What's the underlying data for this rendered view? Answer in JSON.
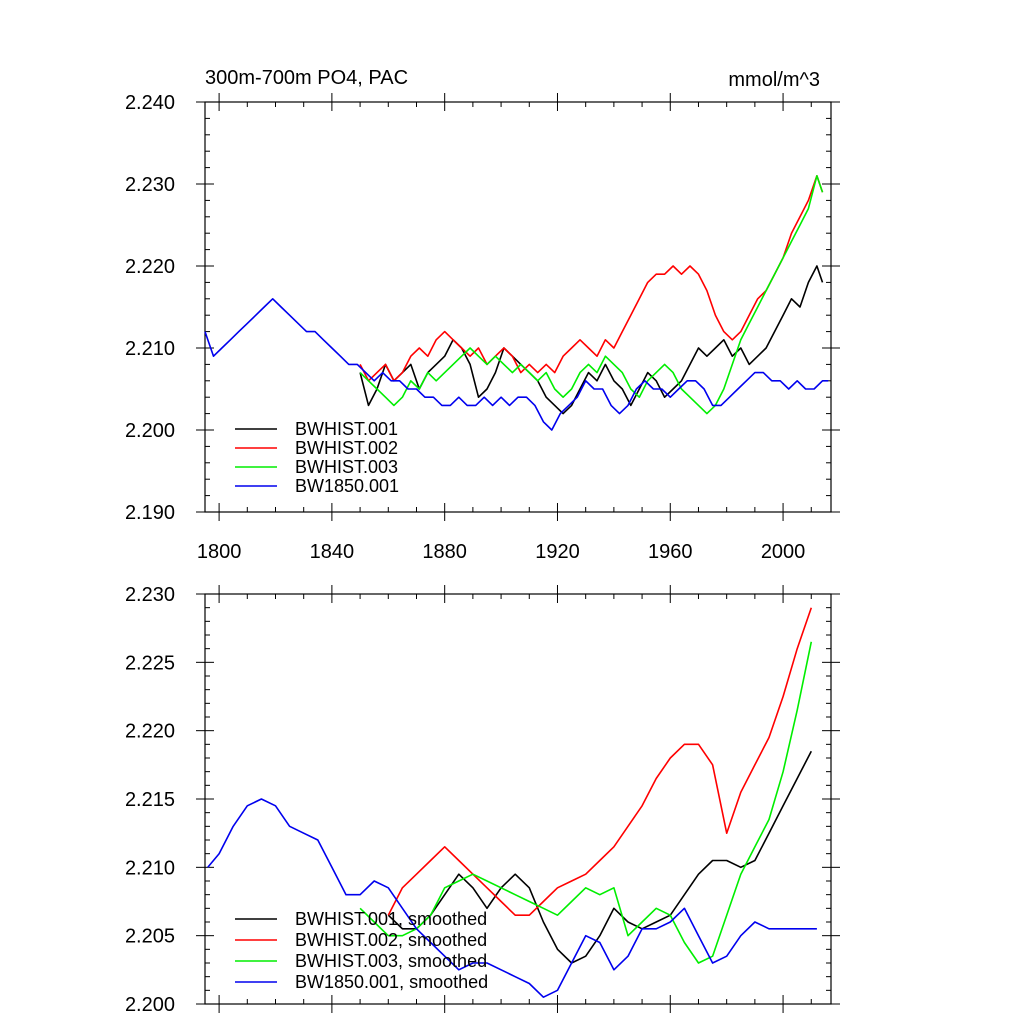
{
  "chart_data": [
    {
      "type": "line",
      "title": "300m-700m PO4, PAC",
      "units_label": "mmol/m^3",
      "xlabel": "",
      "ylabel": "",
      "xlim": [
        1795,
        2017
      ],
      "ylim": [
        2.19,
        2.24
      ],
      "x_ticks": [
        1800,
        1840,
        1880,
        1920,
        1960,
        2000
      ],
      "x_tick_labels": [
        "1800",
        "1840",
        "1880",
        "1920",
        "1960",
        "2000"
      ],
      "y_ticks": [
        2.19,
        2.2,
        2.21,
        2.22,
        2.23,
        2.24
      ],
      "y_tick_labels": [
        "2.190",
        "2.200",
        "2.210",
        "2.220",
        "2.230",
        "2.240"
      ],
      "legend_position": "lower-left",
      "series": [
        {
          "name": "BWHIST.001",
          "color": "#000000",
          "x": [
            1850,
            1853,
            1856,
            1859,
            1862,
            1865,
            1868,
            1871,
            1874,
            1877,
            1880,
            1883,
            1886,
            1889,
            1892,
            1895,
            1898,
            1901,
            1904,
            1907,
            1910,
            1913,
            1916,
            1919,
            1922,
            1925,
            1928,
            1931,
            1934,
            1937,
            1940,
            1943,
            1946,
            1949,
            1952,
            1955,
            1958,
            1961,
            1964,
            1967,
            1970,
            1973,
            1976,
            1979,
            1982,
            1985,
            1988,
            1991,
            1994,
            1997,
            2000,
            2003,
            2006,
            2009,
            2012,
            2014
          ],
          "y": [
            2.207,
            2.203,
            2.205,
            2.208,
            2.206,
            2.207,
            2.208,
            2.205,
            2.207,
            2.208,
            2.209,
            2.211,
            2.21,
            2.208,
            2.204,
            2.205,
            2.207,
            2.21,
            2.209,
            2.208,
            2.207,
            2.206,
            2.204,
            2.203,
            2.202,
            2.203,
            2.205,
            2.207,
            2.206,
            2.208,
            2.206,
            2.205,
            2.203,
            2.205,
            2.207,
            2.206,
            2.204,
            2.205,
            2.206,
            2.208,
            2.21,
            2.209,
            2.21,
            2.211,
            2.209,
            2.21,
            2.208,
            2.209,
            2.21,
            2.212,
            2.214,
            2.216,
            2.215,
            2.218,
            2.22,
            2.218
          ]
        },
        {
          "name": "BWHIST.002",
          "color": "#ff0000",
          "x": [
            1850,
            1853,
            1856,
            1859,
            1862,
            1865,
            1868,
            1871,
            1874,
            1877,
            1880,
            1883,
            1886,
            1889,
            1892,
            1895,
            1898,
            1901,
            1904,
            1907,
            1910,
            1913,
            1916,
            1919,
            1922,
            1925,
            1928,
            1931,
            1934,
            1937,
            1940,
            1943,
            1946,
            1949,
            1952,
            1955,
            1958,
            1961,
            1964,
            1967,
            1970,
            1973,
            1976,
            1979,
            1982,
            1985,
            1988,
            1991,
            1994,
            1997,
            2000,
            2003,
            2006,
            2009,
            2012,
            2014
          ],
          "y": [
            2.208,
            2.206,
            2.207,
            2.208,
            2.206,
            2.207,
            2.209,
            2.21,
            2.209,
            2.211,
            2.212,
            2.211,
            2.21,
            2.209,
            2.21,
            2.208,
            2.209,
            2.21,
            2.209,
            2.207,
            2.208,
            2.207,
            2.208,
            2.207,
            2.209,
            2.21,
            2.211,
            2.21,
            2.209,
            2.211,
            2.21,
            2.212,
            2.214,
            2.216,
            2.218,
            2.219,
            2.219,
            2.22,
            2.219,
            2.22,
            2.219,
            2.217,
            2.214,
            2.212,
            2.211,
            2.212,
            2.214,
            2.216,
            2.217,
            2.219,
            2.221,
            2.224,
            2.226,
            2.228,
            2.231,
            2.229
          ]
        },
        {
          "name": "BWHIST.003",
          "color": "#00ee00",
          "x": [
            1850,
            1853,
            1856,
            1859,
            1862,
            1865,
            1868,
            1871,
            1874,
            1877,
            1880,
            1883,
            1886,
            1889,
            1892,
            1895,
            1898,
            1901,
            1904,
            1907,
            1910,
            1913,
            1916,
            1919,
            1922,
            1925,
            1928,
            1931,
            1934,
            1937,
            1940,
            1943,
            1946,
            1949,
            1952,
            1955,
            1958,
            1961,
            1964,
            1967,
            1970,
            1973,
            1976,
            1979,
            1982,
            1985,
            1988,
            1991,
            1994,
            1997,
            2000,
            2003,
            2006,
            2009,
            2012,
            2014
          ],
          "y": [
            2.207,
            2.206,
            2.205,
            2.204,
            2.203,
            2.204,
            2.206,
            2.205,
            2.207,
            2.206,
            2.207,
            2.208,
            2.209,
            2.21,
            2.209,
            2.208,
            2.209,
            2.208,
            2.207,
            2.208,
            2.207,
            2.206,
            2.207,
            2.205,
            2.204,
            2.205,
            2.207,
            2.208,
            2.207,
            2.209,
            2.208,
            2.207,
            2.205,
            2.204,
            2.206,
            2.207,
            2.208,
            2.207,
            2.205,
            2.204,
            2.203,
            2.202,
            2.203,
            2.205,
            2.208,
            2.211,
            2.213,
            2.215,
            2.217,
            2.219,
            2.221,
            2.223,
            2.225,
            2.227,
            2.231,
            2.229
          ]
        },
        {
          "name": "BW1850.001",
          "color": "#0000ee",
          "x": [
            1795,
            1798,
            1801,
            1804,
            1807,
            1810,
            1813,
            1816,
            1819,
            1822,
            1825,
            1828,
            1831,
            1834,
            1837,
            1840,
            1843,
            1846,
            1849,
            1852,
            1855,
            1858,
            1861,
            1864,
            1867,
            1870,
            1873,
            1876,
            1879,
            1882,
            1885,
            1888,
            1891,
            1894,
            1897,
            1900,
            1903,
            1906,
            1909,
            1912,
            1915,
            1918,
            1921,
            1924,
            1927,
            1930,
            1933,
            1936,
            1939,
            1942,
            1945,
            1948,
            1951,
            1954,
            1957,
            1960,
            1963,
            1966,
            1969,
            1972,
            1975,
            1978,
            1981,
            1984,
            1987,
            1990,
            1993,
            1996,
            1999,
            2002,
            2005,
            2008,
            2011,
            2014,
            2016
          ],
          "y": [
            2.212,
            2.209,
            2.21,
            2.211,
            2.212,
            2.213,
            2.214,
            2.215,
            2.216,
            2.215,
            2.214,
            2.213,
            2.212,
            2.212,
            2.211,
            2.21,
            2.209,
            2.208,
            2.208,
            2.207,
            2.206,
            2.207,
            2.206,
            2.206,
            2.205,
            2.205,
            2.204,
            2.204,
            2.203,
            2.203,
            2.204,
            2.203,
            2.203,
            2.204,
            2.203,
            2.204,
            2.203,
            2.204,
            2.204,
            2.203,
            2.201,
            2.2,
            2.202,
            2.203,
            2.204,
            2.206,
            2.205,
            2.205,
            2.203,
            2.202,
            2.203,
            2.205,
            2.206,
            2.205,
            2.205,
            2.204,
            2.205,
            2.206,
            2.206,
            2.205,
            2.203,
            2.203,
            2.204,
            2.205,
            2.206,
            2.207,
            2.207,
            2.206,
            2.206,
            2.205,
            2.206,
            2.205,
            2.205,
            2.206,
            2.206
          ]
        }
      ]
    },
    {
      "type": "line",
      "title": "",
      "xlabel": "",
      "ylabel": "",
      "xlim": [
        1795,
        2017
      ],
      "ylim": [
        2.2,
        2.23
      ],
      "x_ticks": [
        1800,
        1840,
        1880,
        1920,
        1960,
        2000
      ],
      "y_ticks": [
        2.2,
        2.205,
        2.21,
        2.215,
        2.22,
        2.225,
        2.23
      ],
      "y_tick_labels": [
        "2.200",
        "2.205",
        "2.210",
        "2.215",
        "2.220",
        "2.225",
        "2.230"
      ],
      "legend_position": "lower-left",
      "series": [
        {
          "name": "BWHIST.001, smoothed",
          "color": "#000000",
          "x": [
            1860,
            1865,
            1870,
            1875,
            1880,
            1885,
            1890,
            1895,
            1900,
            1905,
            1910,
            1915,
            1920,
            1925,
            1930,
            1935,
            1940,
            1945,
            1950,
            1955,
            1960,
            1965,
            1970,
            1975,
            1980,
            1985,
            1990,
            1995,
            2000,
            2005,
            2010
          ],
          "y": [
            2.2065,
            2.2055,
            2.2055,
            2.2065,
            2.208,
            2.2095,
            2.2085,
            2.207,
            2.2085,
            2.2095,
            2.2085,
            2.206,
            2.204,
            2.203,
            2.2035,
            2.205,
            2.207,
            2.206,
            2.2055,
            2.206,
            2.2065,
            2.208,
            2.2095,
            2.2105,
            2.2105,
            2.21,
            2.2105,
            2.2125,
            2.2145,
            2.2165,
            2.2185
          ]
        },
        {
          "name": "BWHIST.002, smoothed",
          "color": "#ff0000",
          "x": [
            1860,
            1865,
            1870,
            1875,
            1880,
            1885,
            1890,
            1895,
            1900,
            1905,
            1910,
            1915,
            1920,
            1925,
            1930,
            1935,
            1940,
            1945,
            1950,
            1955,
            1960,
            1965,
            1970,
            1975,
            1980,
            1985,
            1990,
            1995,
            2000,
            2005,
            2010
          ],
          "y": [
            2.2065,
            2.2085,
            2.2095,
            2.2105,
            2.2115,
            2.2105,
            2.2095,
            2.2085,
            2.2075,
            2.2065,
            2.2065,
            2.2075,
            2.2085,
            2.209,
            2.2095,
            2.2105,
            2.2115,
            2.213,
            2.2145,
            2.2165,
            2.218,
            2.219,
            2.219,
            2.2175,
            2.2125,
            2.2155,
            2.2175,
            2.2195,
            2.2225,
            2.226,
            2.229
          ]
        },
        {
          "name": "BWHIST.003, smoothed",
          "color": "#00ee00",
          "x": [
            1850,
            1855,
            1860,
            1865,
            1870,
            1875,
            1880,
            1885,
            1890,
            1895,
            1900,
            1905,
            1910,
            1915,
            1920,
            1925,
            1930,
            1935,
            1940,
            1945,
            1950,
            1955,
            1960,
            1965,
            1970,
            1975,
            1980,
            1985,
            1990,
            1995,
            2000,
            2005,
            2010
          ],
          "y": [
            2.207,
            2.206,
            2.205,
            2.205,
            2.2055,
            2.2065,
            2.2085,
            2.209,
            2.2095,
            2.209,
            2.2085,
            2.208,
            2.2075,
            2.207,
            2.2065,
            2.2075,
            2.2085,
            2.208,
            2.2085,
            2.205,
            2.206,
            2.207,
            2.2065,
            2.2045,
            2.203,
            2.2035,
            2.2065,
            2.2095,
            2.2115,
            2.2135,
            2.217,
            2.2215,
            2.2265
          ]
        },
        {
          "name": "BW1850.001, smoothed",
          "color": "#0000ee",
          "x": [
            1796,
            1800,
            1805,
            1810,
            1815,
            1820,
            1825,
            1830,
            1835,
            1840,
            1845,
            1850,
            1855,
            1860,
            1865,
            1870,
            1875,
            1880,
            1885,
            1890,
            1895,
            1900,
            1905,
            1910,
            1915,
            1920,
            1925,
            1930,
            1935,
            1940,
            1945,
            1950,
            1955,
            1960,
            1965,
            1970,
            1975,
            1980,
            1985,
            1990,
            1995,
            2000,
            2005,
            2010,
            2012
          ],
          "y": [
            2.21,
            2.211,
            2.213,
            2.2145,
            2.215,
            2.2145,
            2.213,
            2.2125,
            2.212,
            2.21,
            2.208,
            2.208,
            2.209,
            2.2085,
            2.207,
            2.2055,
            2.2045,
            2.2035,
            2.2025,
            2.203,
            2.203,
            2.2025,
            2.202,
            2.2015,
            2.2005,
            2.201,
            2.203,
            2.205,
            2.2045,
            2.2025,
            2.2035,
            2.2055,
            2.2055,
            2.206,
            2.207,
            2.205,
            2.203,
            2.2035,
            2.205,
            2.206,
            2.2055,
            2.2055,
            2.2055,
            2.2055,
            2.2055
          ]
        }
      ]
    }
  ]
}
